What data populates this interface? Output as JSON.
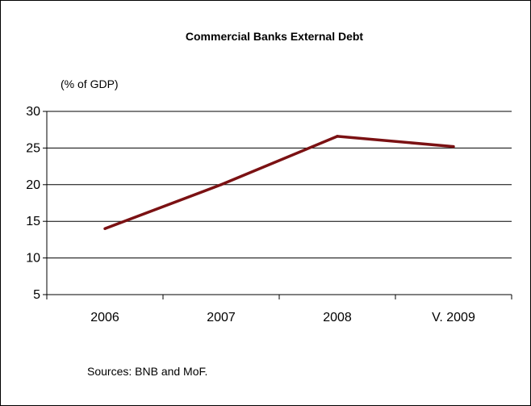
{
  "chart_data": {
    "type": "line",
    "title": "Commercial Banks External Debt",
    "ylabel": "(% of GDP)",
    "categories": [
      "2006",
      "2007",
      "2008",
      "V. 2009"
    ],
    "series": [
      {
        "values": [
          14.0,
          20.0,
          26.6,
          25.2
        ],
        "color": "#7b1113"
      }
    ],
    "ylim": [
      5,
      30
    ],
    "yticks": [
      5,
      10,
      15,
      20,
      25,
      30
    ],
    "grid": true,
    "legend": "none"
  },
  "footer": {
    "sources": "Sources: BNB and MoF."
  }
}
